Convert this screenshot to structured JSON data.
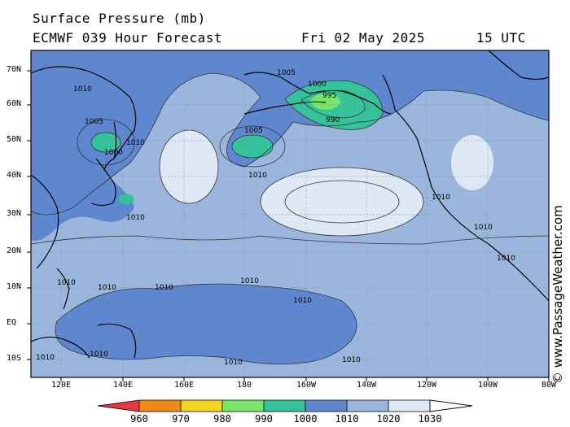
{
  "header": {
    "title": "Surface Pressure (mb)",
    "model": "ECMWF 039 Hour Forecast",
    "date": "Fri 02 May 2025",
    "time": "15 UTC"
  },
  "credit": "© www.PassageWeather.com",
  "map": {
    "lat_labels": [
      "70N",
      "60N",
      "50N",
      "40N",
      "30N",
      "20N",
      "10N",
      "EQ",
      "10S"
    ],
    "lon_labels": [
      "120E",
      "140E",
      "160E",
      "180",
      "160W",
      "140W",
      "120W",
      "100W",
      "80W"
    ]
  },
  "colorbar": {
    "labels": [
      "960",
      "970",
      "980",
      "990",
      "1000",
      "1010",
      "1020",
      "1030"
    ],
    "colors": [
      "#e8383d",
      "#f08a16",
      "#f2d51e",
      "#79e46a",
      "#35c39b",
      "#5f87cf",
      "#9ab6dd",
      "#dfe9f5"
    ]
  },
  "isobar_labels": [
    "1010",
    "1005",
    "1000",
    "995",
    "990",
    "1005",
    "1010",
    "1005",
    "1000",
    "1010",
    "1010",
    "1010",
    "1010",
    "1010",
    "1010",
    "1010",
    "1010",
    "1010",
    "1010",
    "1010",
    "1010",
    "1010",
    "1010"
  ]
}
